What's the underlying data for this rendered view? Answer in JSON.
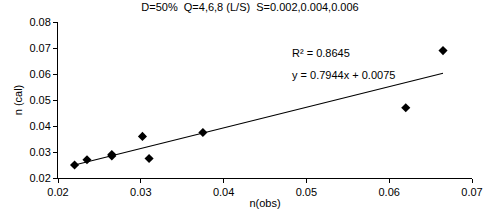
{
  "chart_data": {
    "type": "scatter",
    "title": "D=50%  Q=4,6,8 (L/S)  S=0.002,0.004,0.006",
    "x_label": "n(obs)",
    "y_label": "n (cal)",
    "series": [
      {
        "type": "scatter",
        "color": "#000000",
        "marker": "diamond",
        "x": [
          0.022,
          0.0235,
          0.0265,
          0.0265,
          0.0302,
          0.031,
          0.0375,
          0.062,
          0.0665
        ],
        "values": [
          0.025,
          0.027,
          0.0285,
          0.029,
          0.036,
          0.0275,
          0.0375,
          0.047,
          0.069
        ]
      },
      {
        "type": "line",
        "color": "#000000",
        "line_style": "solid",
        "x": [
          0.022,
          0.0665
        ],
        "values": [
          0.025,
          0.0603
        ]
      }
    ],
    "annotations": [
      "R² = 0.8645",
      "y = 0.7944x + 0.0075"
    ],
    "xlim": [
      0.02,
      0.07
    ],
    "xticks": [
      0.02,
      0.03,
      0.04,
      0.05,
      0.06,
      0.07
    ],
    "ylim": [
      0.02,
      0.08
    ],
    "yticks": [
      0.02,
      0.03,
      0.04,
      0.05,
      0.06,
      0.07,
      0.08
    ],
    "grid": false
  }
}
